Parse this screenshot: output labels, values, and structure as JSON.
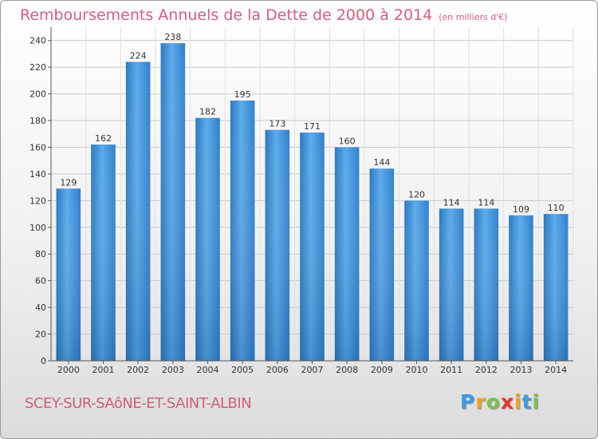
{
  "header": {
    "title": "Remboursements Annuels de la Dette de 2000 à 2014",
    "unit": "(en milliers d'€)"
  },
  "footer": {
    "commune": "SCEY-SUR-SAôNE-ET-SAINT-ALBIN",
    "logo": "Proxiti"
  },
  "logo_colors": [
    "#3d9be0",
    "#f0a020",
    "#7cc24a",
    "#e8342c",
    "#f0a020",
    "#3d9be0",
    "#7cc24a"
  ],
  "chart_data": {
    "type": "bar",
    "categories": [
      "2000",
      "2001",
      "2002",
      "2003",
      "2004",
      "2005",
      "2006",
      "2007",
      "2008",
      "2009",
      "2010",
      "2011",
      "2012",
      "2013",
      "2014"
    ],
    "values": [
      129,
      162,
      224,
      238,
      182,
      195,
      173,
      171,
      160,
      144,
      120,
      114,
      114,
      109,
      110
    ],
    "title": "Remboursements Annuels de la Dette de 2000 à 2014",
    "xlabel": "",
    "ylabel": "",
    "ylim": [
      0,
      250
    ],
    "yticks": [
      0,
      20,
      40,
      60,
      80,
      100,
      120,
      140,
      160,
      180,
      200,
      220,
      240
    ],
    "grid": true,
    "bar_color": "#3d8fd6",
    "grid_color": "#c8c8c8"
  }
}
